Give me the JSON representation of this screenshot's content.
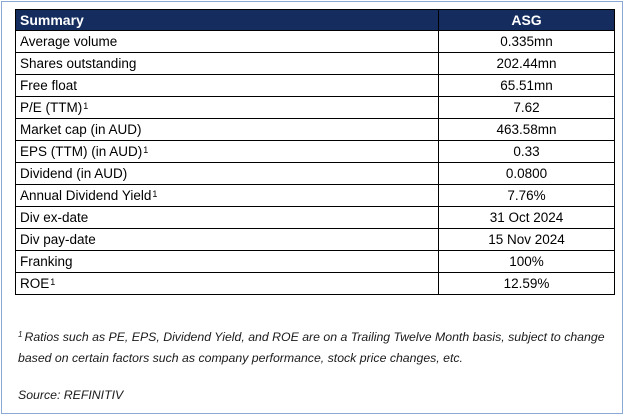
{
  "table": {
    "header": {
      "label": "Summary",
      "value": "ASG"
    },
    "rows": [
      {
        "label": "Average volume",
        "sup": "",
        "value": "0.335mn"
      },
      {
        "label": "Shares outstanding",
        "sup": "",
        "value": "202.44mn"
      },
      {
        "label": "Free float",
        "sup": "",
        "value": "65.51mn"
      },
      {
        "label": "P/E (TTM)",
        "sup": "1",
        "value": "7.62"
      },
      {
        "label": "Market cap (in AUD)",
        "sup": "",
        "value": "463.58mn"
      },
      {
        "label": "EPS (TTM) (in AUD)",
        "sup": "1",
        "value": "0.33"
      },
      {
        "label": "Dividend (in AUD)",
        "sup": "",
        "value": "0.0800"
      },
      {
        "label": "Annual Dividend Yield",
        "sup": "1",
        "value": "7.76%"
      },
      {
        "label": "Div ex-date",
        "sup": "",
        "value": "31 Oct 2024"
      },
      {
        "label": "Div pay-date",
        "sup": "",
        "value": "15 Nov 2024"
      },
      {
        "label": "Franking",
        "sup": "",
        "value": "100%"
      },
      {
        "label": "ROE",
        "sup": "1",
        "value": "12.59%"
      }
    ]
  },
  "footnote": {
    "marker": "1",
    "text": "Ratios such as PE, EPS, Dividend Yield, and ROE are on a Trailing Twelve Month basis, subject to change based on certain factors such as company performance, stock price changes, etc."
  },
  "source": "Source: REFINITIV"
}
